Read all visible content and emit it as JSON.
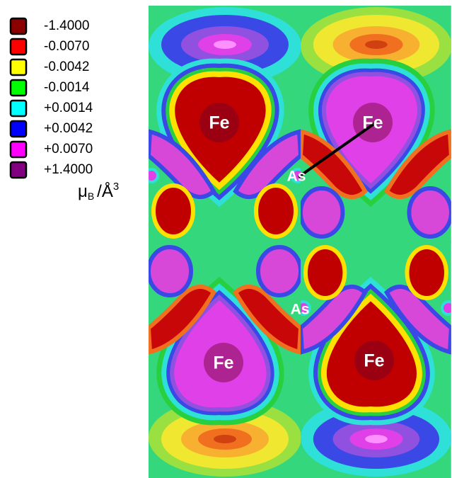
{
  "legend": {
    "entries": [
      {
        "label": "-1.4000",
        "color": "#8b0000"
      },
      {
        "label": "-0.0070",
        "color": "#ff0000"
      },
      {
        "label": "-0.0042",
        "color": "#ffff00"
      },
      {
        "label": "-0.0014",
        "color": "#00ff00"
      },
      {
        "label": "+0.0014",
        "color": "#00ffff"
      },
      {
        "label": "+0.0042",
        "color": "#0000ff"
      },
      {
        "label": "+0.0070",
        "color": "#ff00ff"
      },
      {
        "label": "+1.4000",
        "color": "#800080"
      }
    ],
    "unit": {
      "symbol": "μ",
      "subscript": "B",
      "slash": "/Å",
      "superscript": "3"
    }
  },
  "atoms": [
    {
      "label": "Fe"
    },
    {
      "label": "Fe"
    },
    {
      "label": "As"
    },
    {
      "label": "As"
    },
    {
      "label": "Fe"
    },
    {
      "label": "Fe"
    }
  ]
}
